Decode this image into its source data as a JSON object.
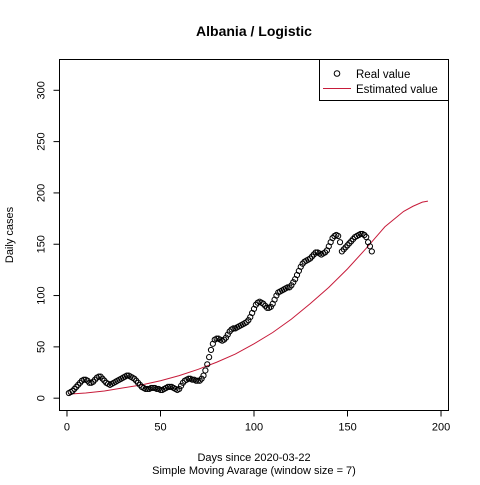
{
  "chart_data": {
    "type": "scatter",
    "title": "Albania / Logistic",
    "xlabel": "Days since 2020-03-22",
    "subtitle": "Simple Moving Avarage (window size = 7)",
    "ylabel": "Daily cases",
    "xlim": [
      -4,
      204
    ],
    "ylim": [
      -12,
      330
    ],
    "xticks": [
      0,
      50,
      100,
      150,
      200
    ],
    "yticks": [
      0,
      50,
      100,
      150,
      200,
      250,
      300
    ],
    "grid": false,
    "legend": {
      "placement": "top-right",
      "entries": [
        "Real value",
        "Estimated value"
      ]
    },
    "series": [
      {
        "name": "Real value",
        "kind": "points",
        "color": "#000000",
        "x": [
          1,
          2,
          3,
          4,
          5,
          6,
          7,
          8,
          9,
          10,
          11,
          12,
          13,
          14,
          15,
          16,
          17,
          18,
          19,
          20,
          21,
          22,
          23,
          24,
          25,
          26,
          27,
          28,
          29,
          30,
          31,
          32,
          33,
          34,
          35,
          36,
          37,
          38,
          39,
          40,
          41,
          42,
          43,
          44,
          45,
          46,
          47,
          48,
          49,
          50,
          51,
          52,
          53,
          54,
          55,
          56,
          57,
          58,
          59,
          60,
          61,
          62,
          63,
          64,
          65,
          66,
          67,
          68,
          69,
          70,
          71,
          72,
          73,
          74,
          75,
          76,
          77,
          78,
          79,
          80,
          81,
          82,
          83,
          84,
          85,
          86,
          87,
          88,
          89,
          90,
          91,
          92,
          93,
          94,
          95,
          96,
          97,
          98,
          99,
          100,
          101,
          102,
          103,
          104,
          105,
          106,
          107,
          108,
          109,
          110,
          111,
          112,
          113,
          114,
          115,
          116,
          117,
          118,
          119,
          120,
          121,
          122,
          123,
          124,
          125,
          126,
          127,
          128,
          129,
          130,
          131,
          132,
          133,
          134,
          135,
          136,
          137,
          138,
          139,
          140,
          141,
          142,
          143,
          144,
          145,
          146,
          147,
          148,
          149,
          150,
          151,
          152,
          153,
          154,
          155,
          156,
          157,
          158,
          159,
          160,
          161,
          162,
          163
        ],
        "y": [
          5,
          6,
          7,
          9,
          11,
          13,
          15,
          17,
          18,
          18,
          17,
          15,
          15,
          16,
          18,
          20,
          21,
          21,
          19,
          17,
          15,
          14,
          13,
          14,
          15,
          16,
          17,
          18,
          19,
          20,
          21,
          22,
          22,
          21,
          20,
          19,
          17,
          15,
          13,
          11,
          10,
          9,
          9,
          9,
          10,
          10,
          10,
          9,
          9,
          8,
          8,
          9,
          10,
          11,
          11,
          11,
          10,
          9,
          8,
          9,
          12,
          15,
          17,
          18,
          19,
          19,
          18,
          18,
          17,
          17,
          17,
          19,
          22,
          27,
          33,
          40,
          47,
          53,
          57,
          58,
          58,
          57,
          56,
          57,
          59,
          62,
          65,
          67,
          68,
          68,
          69,
          70,
          71,
          72,
          73,
          74,
          76,
          79,
          83,
          87,
          91,
          93,
          94,
          93,
          92,
          90,
          88,
          88,
          89,
          92,
          96,
          100,
          103,
          104,
          105,
          106,
          107,
          108,
          108,
          110,
          113,
          116,
          120,
          124,
          128,
          131,
          133,
          134,
          135,
          136,
          138,
          140,
          142,
          142,
          141,
          140,
          141,
          142,
          144,
          148,
          152,
          156,
          158,
          159,
          158,
          152,
          143,
          145,
          147,
          149,
          151,
          153,
          155,
          157,
          158,
          159,
          160,
          160,
          159,
          157,
          152,
          148,
          143
        ]
      },
      {
        "name": "Estimated value",
        "kind": "line",
        "color": "#c71b3a",
        "x": [
          1,
          10,
          20,
          30,
          40,
          50,
          60,
          70,
          80,
          90,
          100,
          110,
          120,
          130,
          140,
          150,
          160,
          170,
          180,
          185,
          190,
          193
        ],
        "y": [
          4,
          5,
          7,
          10,
          13,
          17,
          22,
          28,
          35,
          43,
          53,
          64,
          77,
          92,
          108,
          126,
          146,
          167,
          182,
          187,
          191,
          192
        ]
      }
    ]
  }
}
